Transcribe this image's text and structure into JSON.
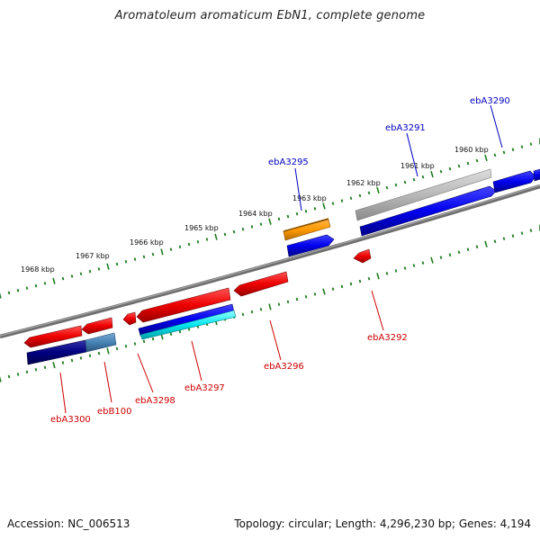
{
  "title": "Aromatoleum aromaticum EbN1, complete genome",
  "footer": {
    "accession": "Accession: NC_006513",
    "summary": "Topology: circular; Length: 4,296,230 bp; Genes: 4,194"
  },
  "kbp_labels": [
    "1968 kbp",
    "1967 kbp",
    "1966 kbp",
    "1965 kbp",
    "1964 kbp",
    "1963 kbp",
    "1962 kbp",
    "1961 kbp",
    "1960 kbp"
  ],
  "gene_labels": {
    "top": [
      "ebA3295",
      "ebA3291",
      "ebA3290"
    ],
    "bottom": [
      "ebA3300",
      "ebB100",
      "ebA3298",
      "ebA3297",
      "ebA3296",
      "ebA3292"
    ]
  },
  "colors": {
    "forward_label": "#0000c0",
    "reverse_label": "#cc0000",
    "tick": "#1e7a1e",
    "backbone": "#777777",
    "red": "#ee1111",
    "blue": "#0000ee",
    "orange": "#ff9900",
    "gray": "#b8b8b8",
    "navy": "#000080",
    "steelblue": "#4682b4",
    "cyan": "#00e5ee"
  }
}
